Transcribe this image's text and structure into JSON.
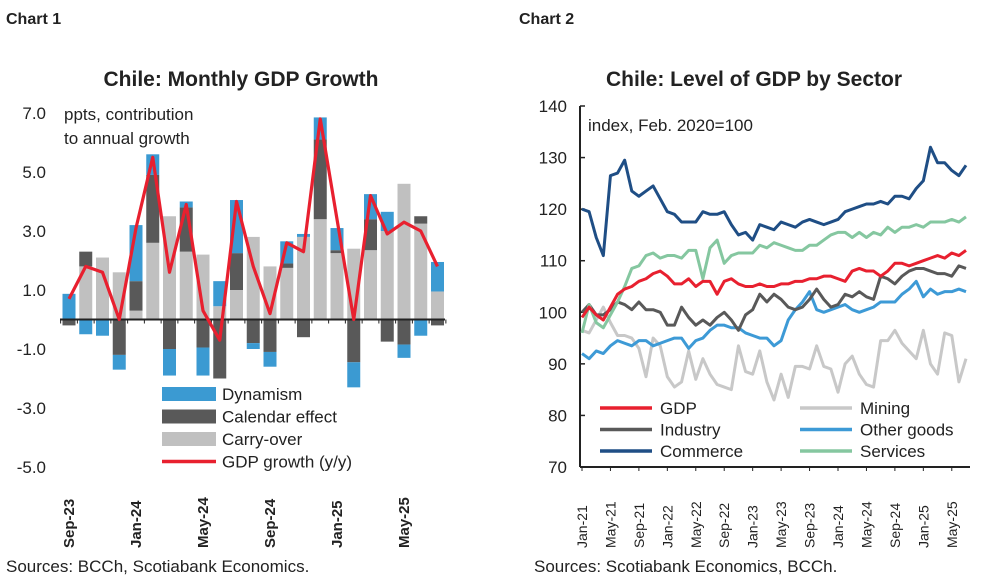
{
  "chart_data": [
    {
      "type": "bar",
      "stacked": true,
      "chart_label": "Chart 1",
      "title": "Chile: Monthly GDP Growth",
      "annotation": "ppts, contribution\nto annual growth",
      "source": "Sources: BCCh, Scotiabank Economics.",
      "ylim": [
        -5,
        7
      ],
      "yticks": [
        "7.0",
        "5.0",
        "3.0",
        "1.0",
        "-1.0",
        "-3.0",
        "-5.0"
      ],
      "ytick_values": [
        7,
        5,
        3,
        1,
        -1,
        -3,
        -5
      ],
      "categories": [
        "Sep-23",
        "Oct-23",
        "Nov-23",
        "Dec-23",
        "Jan-24",
        "Feb-24",
        "Mar-24",
        "Apr-24",
        "May-24",
        "Jun-24",
        "Jul-24",
        "Aug-24",
        "Sep-24",
        "Oct-24",
        "Nov-24",
        "Dec-24",
        "Jan-25",
        "Feb-25",
        "Mar-25",
        "Apr-25",
        "May-25",
        "Jun-25",
        "Jul-25"
      ],
      "xtick_labels": [
        "Sep-23",
        "Jan-24",
        "May-24",
        "Sep-24",
        "Jan-25",
        "May-25"
      ],
      "legend_placement": "bottom-center",
      "series": [
        {
          "name": "Carry-over",
          "color": "#c0c0c0",
          "values": [
            0,
            1.8,
            2.1,
            1.6,
            0.3,
            2.6,
            3.5,
            2.3,
            2.2,
            0.45,
            1.0,
            2.8,
            1.8,
            1.75,
            2.8,
            3.4,
            2.25,
            2.4,
            2.35,
            3.0,
            4.6,
            3.25,
            0.95
          ]
        },
        {
          "name": "Calendar effect",
          "color": "#595959",
          "values": [
            -0.2,
            0.5,
            0,
            -1.2,
            1.0,
            2.3,
            -1.0,
            1.5,
            -0.95,
            -2.0,
            1.25,
            -0.8,
            -1.1,
            0.15,
            -0.6,
            2.7,
            0.1,
            -1.45,
            1.05,
            -0.75,
            -0.85,
            0.25,
            -0.2
          ]
        },
        {
          "name": "Dynamism",
          "color": "#3b9ad2",
          "values": [
            0.87,
            -0.5,
            -0.55,
            -0.5,
            1.9,
            0.7,
            -0.9,
            0.2,
            -0.95,
            0.85,
            1.8,
            -0.2,
            -0.5,
            0.75,
            0.1,
            0.75,
            0.75,
            -0.85,
            0.85,
            0.65,
            -0.45,
            -0.55,
            1.0
          ]
        }
      ],
      "line": {
        "name": "GDP growth (y/y)",
        "color": "#e8202f",
        "values": [
          0.7,
          1.8,
          1.6,
          0.0,
          3.1,
          5.5,
          1.6,
          3.9,
          0.3,
          -0.7,
          4.0,
          1.8,
          0.2,
          2.6,
          2.3,
          6.8,
          3.4,
          0.0,
          4.2,
          2.9,
          3.3,
          3.0,
          1.8
        ]
      },
      "legend_order": [
        "Dynamism",
        "Calendar effect",
        "Carry-over",
        "GDP growth (y/y)"
      ]
    },
    {
      "type": "line",
      "chart_label": "Chart 2",
      "title": "Chile: Level of GDP by Sector",
      "annotation": "index, Feb. 2020=100",
      "source": "Sources: Scotiabank Economics, BCCh.",
      "ylim": [
        70,
        140
      ],
      "yticks": [
        "140",
        "130",
        "120",
        "110",
        "100",
        "90",
        "80",
        "70"
      ],
      "ytick_values": [
        140,
        130,
        120,
        110,
        100,
        90,
        80,
        70
      ],
      "x_start": "Jan-21",
      "x_end": "Jul-25",
      "xtick_labels": [
        "Jan-21",
        "May-21",
        "Sep-21",
        "Jan-22",
        "May-22",
        "Sep-22",
        "Jan-23",
        "May-23",
        "Sep-23",
        "Jan-24",
        "May-24",
        "Sep-24",
        "Jan-25",
        "May-25"
      ],
      "legend_placement": "bottom",
      "series": [
        {
          "name": "GDP",
          "color": "#e8202f",
          "values": [
            99,
            101,
            99.5,
            98.5,
            101,
            103.5,
            104.5,
            105,
            106,
            106.5,
            107.5,
            108,
            107,
            105.5,
            105.5,
            106.5,
            105,
            106,
            106,
            103.5,
            106,
            106.5,
            105.5,
            105,
            105,
            105.5,
            105,
            105,
            105.5,
            105.5,
            106,
            106,
            106.5,
            106.5,
            107,
            107,
            106.5,
            106,
            108,
            108.5,
            108,
            108,
            107,
            108,
            109.5,
            109.5,
            109,
            109.5,
            110,
            110.5,
            111,
            110.5,
            111.5,
            111,
            112
          ]
        },
        {
          "name": "Mining",
          "color": "#c8c8c8",
          "values": [
            96.5,
            96,
            98.5,
            101,
            98,
            95.5,
            95.5,
            95,
            93,
            87.5,
            95,
            93.5,
            87.5,
            85.5,
            86.5,
            92.5,
            87,
            91,
            88,
            86,
            85.5,
            85,
            93.5,
            88.5,
            88,
            92.5,
            86.5,
            83,
            88,
            83.5,
            89.5,
            89.5,
            89,
            93.5,
            89.5,
            89,
            84.5,
            90,
            91.5,
            88,
            86,
            85.5,
            94.5,
            94.5,
            96.5,
            94,
            92.5,
            91,
            96.5,
            90,
            88,
            96,
            95.5,
            86.5,
            91
          ]
        },
        {
          "name": "Industry",
          "color": "#595959",
          "values": [
            100,
            101.5,
            99.5,
            99.5,
            100.5,
            102,
            101.5,
            100.5,
            102,
            100.5,
            100.5,
            100,
            97.5,
            97.5,
            101,
            99,
            97.5,
            98.5,
            97.5,
            99,
            100,
            98.5,
            96.5,
            99.5,
            100.5,
            103.5,
            102,
            103.5,
            102.5,
            101,
            100.5,
            101,
            102.5,
            104.5,
            102.5,
            101,
            101.5,
            103.5,
            103,
            104,
            103,
            102.5,
            107,
            106.5,
            105.5,
            107,
            108,
            108.5,
            108.5,
            108,
            107.5,
            107.5,
            107,
            109,
            108.5
          ]
        },
        {
          "name": "Other goods",
          "color": "#3d9ad6",
          "values": [
            92,
            91,
            92.5,
            92,
            93.5,
            94.5,
            94,
            93.5,
            94.5,
            94.5,
            93.5,
            94,
            94.5,
            95,
            95,
            93,
            94.5,
            95,
            96.5,
            97.5,
            97.5,
            97,
            97,
            96,
            95.5,
            95,
            95,
            93.5,
            94.5,
            98.5,
            100.5,
            102,
            104,
            100.5,
            100,
            100.5,
            101,
            101.5,
            100.5,
            100,
            100.5,
            101,
            102,
            102,
            102,
            103.5,
            104.5,
            106,
            103,
            104.5,
            103.5,
            104,
            104,
            104.5,
            104
          ]
        },
        {
          "name": "Commerce",
          "color": "#1f4e85",
          "values": [
            120,
            119.5,
            114.5,
            111,
            126.5,
            127,
            129.5,
            123.5,
            122.5,
            123.5,
            124.5,
            122,
            119.5,
            119,
            117.5,
            117.5,
            117.5,
            119.5,
            119,
            119,
            119.5,
            117,
            115,
            115.5,
            114,
            117,
            116.5,
            116,
            117.5,
            117,
            116.5,
            117.5,
            118,
            117.5,
            117,
            117.5,
            118,
            119.5,
            120,
            120.5,
            121,
            121,
            121.5,
            121,
            122.5,
            122.5,
            122,
            124,
            125.5,
            132,
            129,
            129,
            127.5,
            126.5,
            128.5
          ]
        },
        {
          "name": "Services",
          "color": "#85c7a0",
          "values": [
            96,
            101.5,
            98,
            97,
            99.5,
            102,
            105,
            108.5,
            109,
            111,
            111.5,
            110.5,
            111,
            111,
            110.5,
            112,
            112,
            106.5,
            112.5,
            114,
            109.5,
            111,
            111.5,
            111.5,
            111.5,
            113,
            112.5,
            113.5,
            113,
            112.5,
            112,
            112,
            113,
            113,
            114,
            115,
            115.5,
            115.5,
            114.5,
            115.5,
            114.5,
            115.5,
            115,
            116.5,
            115.5,
            116.5,
            116.5,
            117,
            116.5,
            117.5,
            117.5,
            117.5,
            118,
            117.5,
            118.5
          ]
        }
      ]
    }
  ]
}
